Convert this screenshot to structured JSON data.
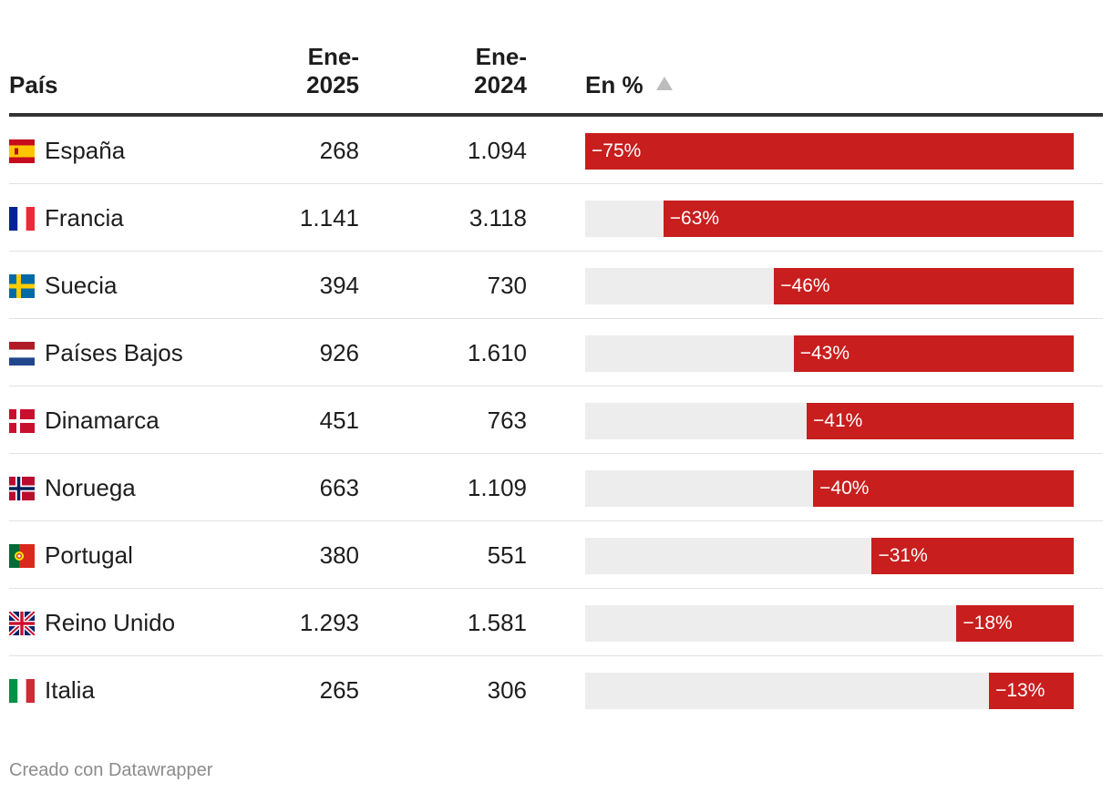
{
  "chart_data": {
    "type": "table",
    "title": "",
    "columns": {
      "country": "País",
      "year1_line1": "Ene-",
      "year1_line2": "2025",
      "year2_line1": "Ene-",
      "year2_line2": "2024",
      "percent": "En %"
    },
    "rows": [
      {
        "flag": "spain-flag-icon",
        "country": "España",
        "jan2025": "268",
        "jan2024": "1.094",
        "change": -75,
        "change_label": "−75%"
      },
      {
        "flag": "france-flag-icon",
        "country": "Francia",
        "jan2025": "1.141",
        "jan2024": "3.118",
        "change": -63,
        "change_label": "−63%"
      },
      {
        "flag": "sweden-flag-icon",
        "country": "Suecia",
        "jan2025": "394",
        "jan2024": "730",
        "change": -46,
        "change_label": "−46%"
      },
      {
        "flag": "netherlands-flag-icon",
        "country": "Países Bajos",
        "jan2025": "926",
        "jan2024": "1.610",
        "change": -43,
        "change_label": "−43%"
      },
      {
        "flag": "denmark-flag-icon",
        "country": "Dinamarca",
        "jan2025": "451",
        "jan2024": "763",
        "change": -41,
        "change_label": "−41%"
      },
      {
        "flag": "norway-flag-icon",
        "country": "Noruega",
        "jan2025": "663",
        "jan2024": "1.109",
        "change": -40,
        "change_label": "−40%"
      },
      {
        "flag": "portugal-flag-icon",
        "country": "Portugal",
        "jan2025": "380",
        "jan2024": "551",
        "change": -31,
        "change_label": "−31%"
      },
      {
        "flag": "uk-flag-icon",
        "country": "Reino Unido",
        "jan2025": "1.293",
        "jan2024": "1.581",
        "change": -18,
        "change_label": "−18%"
      },
      {
        "flag": "italy-flag-icon",
        "country": "Italia",
        "jan2025": "265",
        "jan2024": "306",
        "change": -13,
        "change_label": "−13%"
      }
    ],
    "bar_scale_max": 75,
    "bar_color": "#c81e1e",
    "track_color": "#ededed"
  },
  "footer": {
    "credit": "Creado con Datawrapper"
  },
  "icons": {
    "sort": "sort-ascending-icon"
  }
}
